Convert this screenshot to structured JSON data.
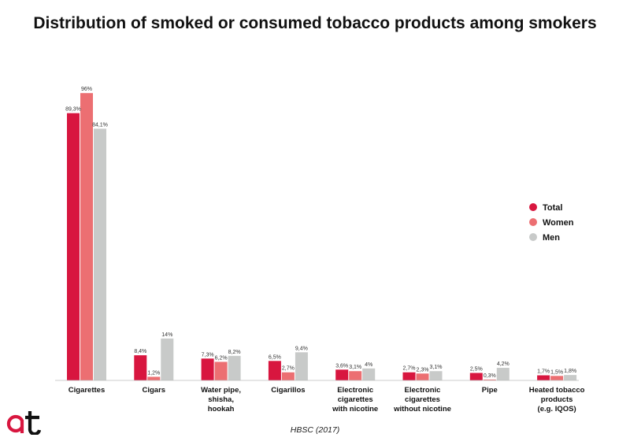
{
  "chart_data": {
    "type": "bar",
    "title": "Distribution of smoked or consumed tobacco products among smokers",
    "categories": [
      [
        "Cigarettes"
      ],
      [
        "Cigars"
      ],
      [
        "Water pipe,",
        "shisha,",
        "hookah"
      ],
      [
        "Cigarillos"
      ],
      [
        "Electronic",
        "cigarettes",
        "with nicotine"
      ],
      [
        "Electronic",
        "cigarettes",
        "without nicotine"
      ],
      [
        "Pipe"
      ],
      [
        "Heated tobacco",
        "products",
        "(e.g. IQOS)"
      ]
    ],
    "series": [
      {
        "name": "Total",
        "color": "#d8163f",
        "values": [
          89.3,
          8.4,
          7.3,
          6.5,
          3.6,
          2.7,
          2.5,
          1.7
        ],
        "labels": [
          "89,3%",
          "8,4%",
          "7,3%",
          "6,5%",
          "3,6%",
          "2,7%",
          "2,5%",
          "1,7%"
        ]
      },
      {
        "name": "Women",
        "color": "#ec6f72",
        "values": [
          96,
          1.2,
          6.2,
          2.7,
          3.1,
          2.3,
          0.3,
          1.5
        ],
        "labels": [
          "96%",
          "1,2%",
          "6,2%",
          "2,7%",
          "3,1%",
          "2,3%",
          "0,3%",
          "1,5%"
        ]
      },
      {
        "name": "Men",
        "color": "#c8cac9",
        "values": [
          84.1,
          14,
          8.2,
          9.4,
          4,
          3.1,
          4.2,
          1.8
        ],
        "labels": [
          "84,1%",
          "14%",
          "8,2%",
          "9,4%",
          "4%",
          "3,1%",
          "4,2%",
          "1,8%"
        ]
      }
    ],
    "ylim": [
      0,
      100
    ],
    "legend_position": "right",
    "grid": false,
    "source": "HBSC (2017)"
  },
  "logo": {
    "name": "at-logo",
    "colors": {
      "a": "#d8163f",
      "t": "#111111"
    }
  }
}
